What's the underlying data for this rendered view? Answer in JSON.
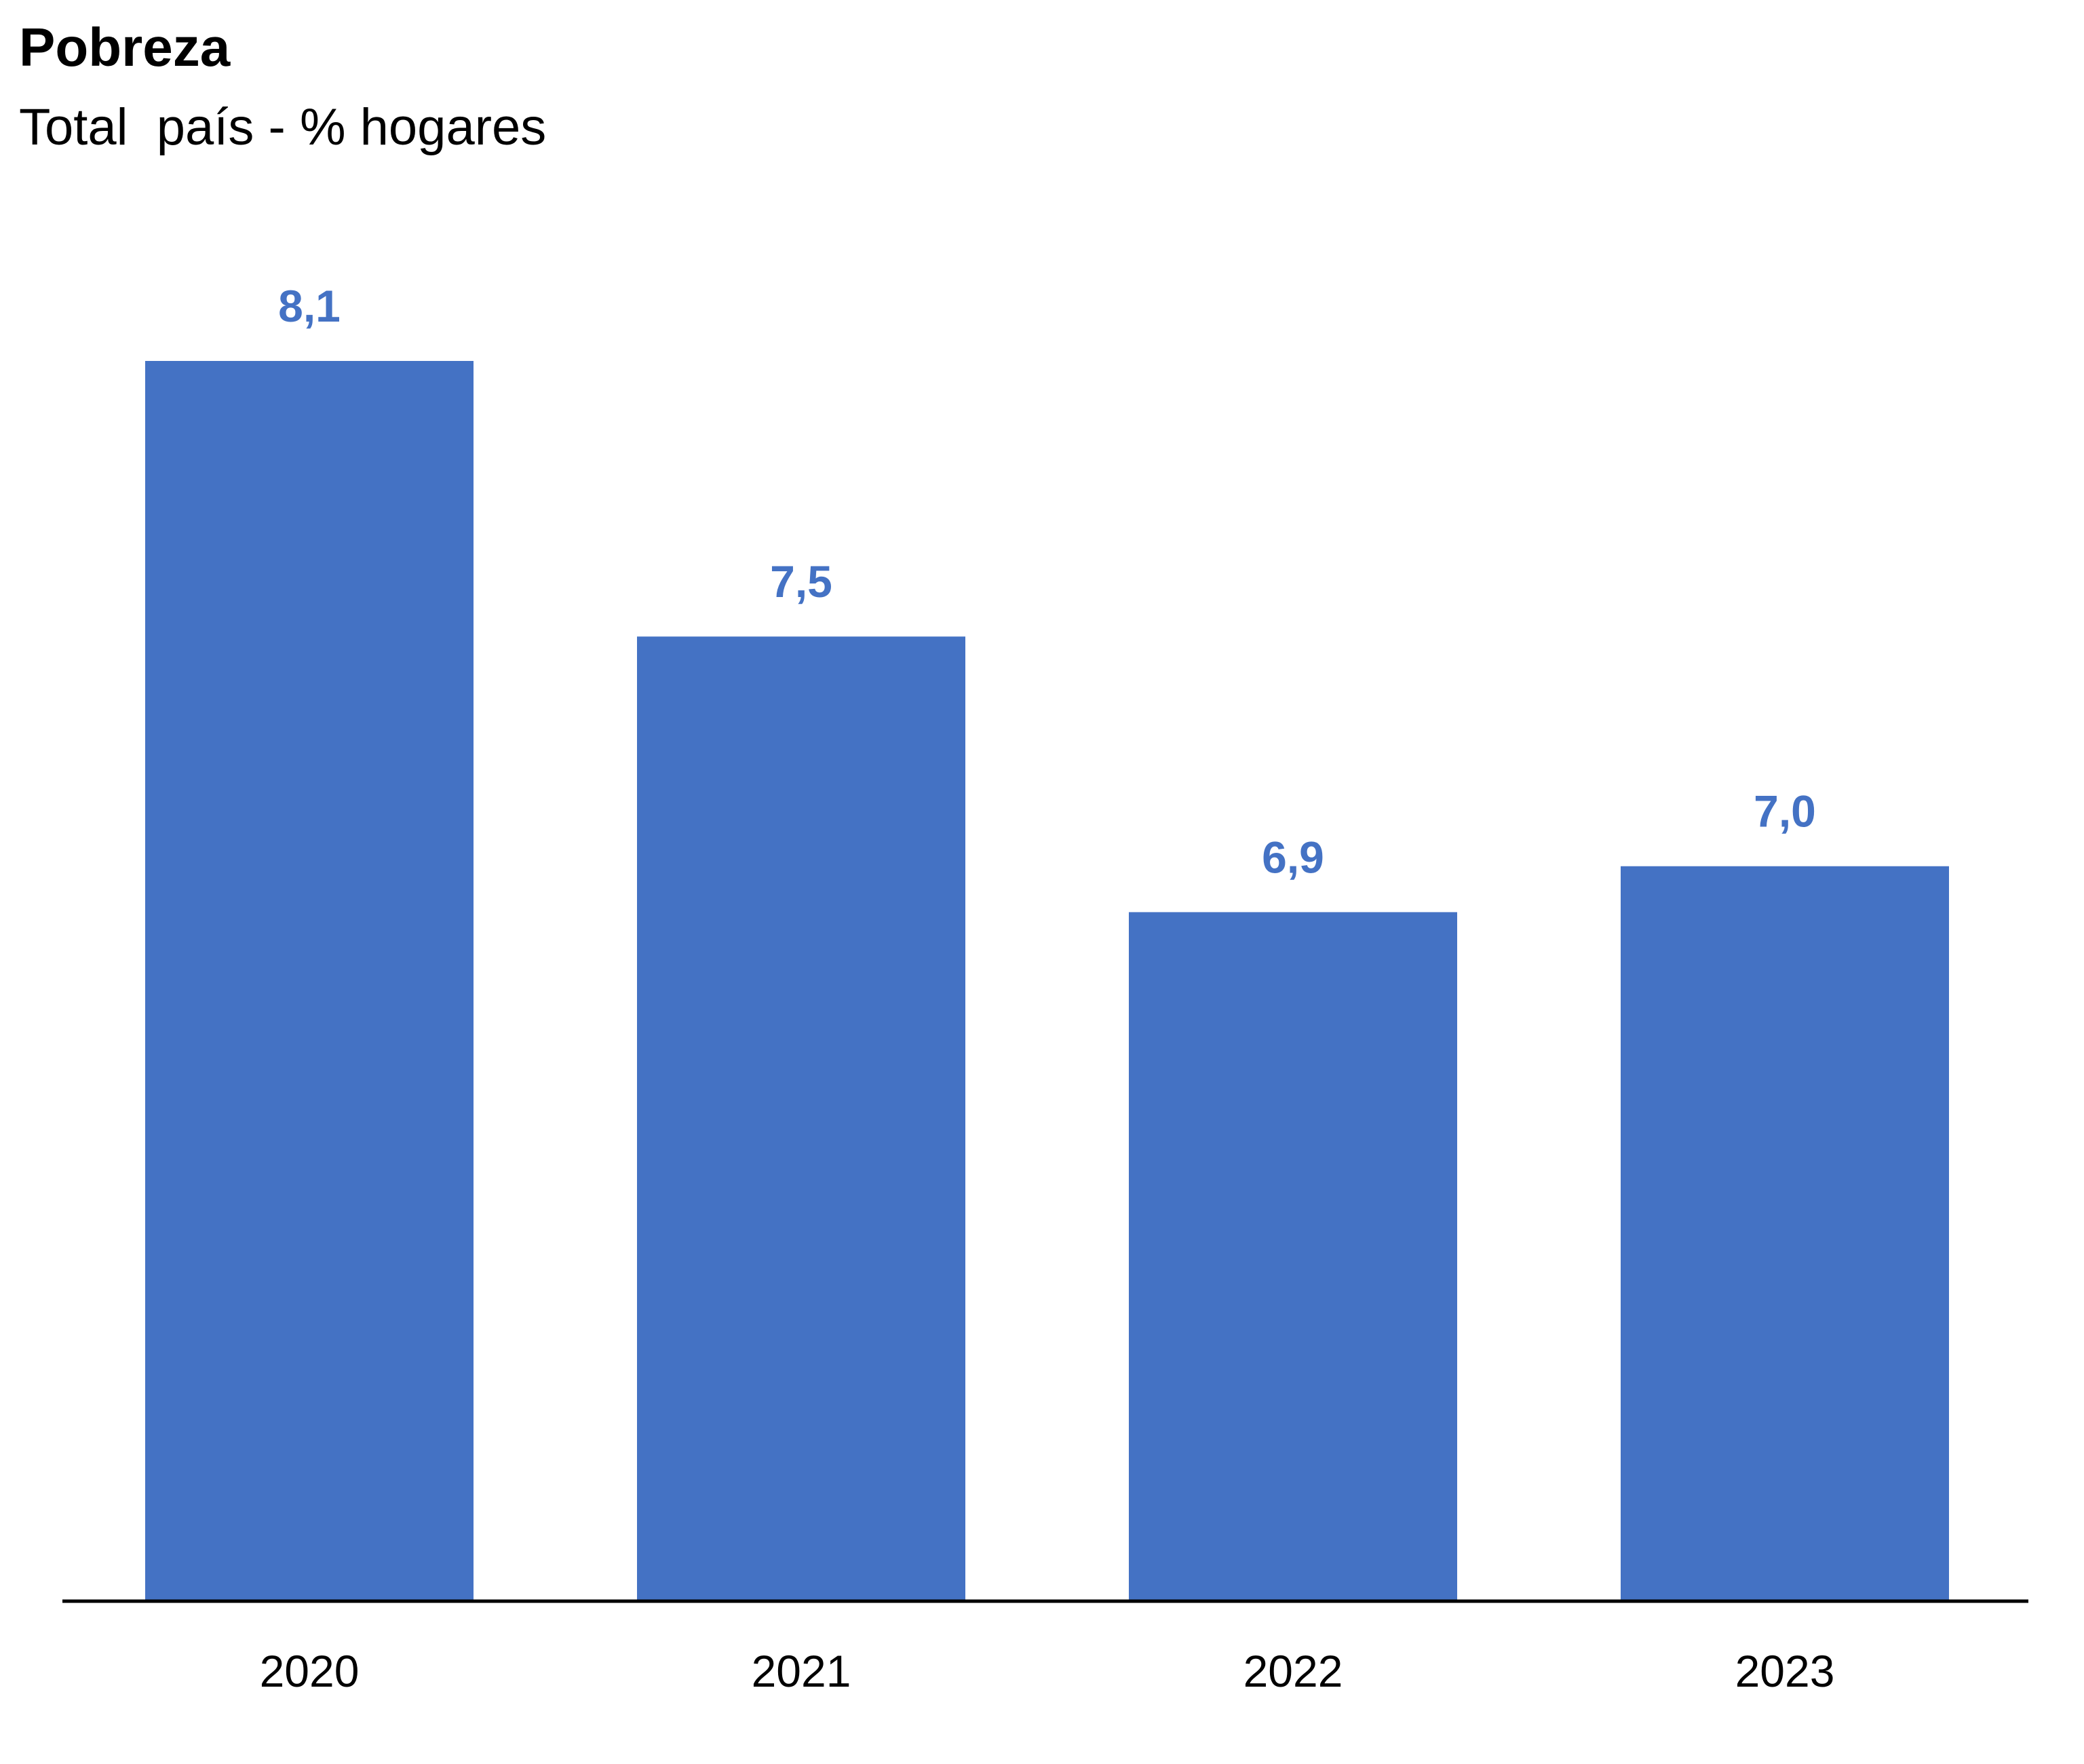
{
  "chart_data": {
    "type": "bar",
    "title": "Pobreza",
    "subtitle": "Total  país - % hogares",
    "categories": [
      "2020",
      "2021",
      "2022",
      "2023"
    ],
    "values": [
      8.1,
      7.5,
      6.9,
      7.0
    ],
    "value_labels": [
      "8,1",
      "7,5",
      "6,9",
      "7,0"
    ],
    "xlabel": "",
    "ylabel": "",
    "ylim": [
      5.4,
      8.1
    ],
    "grid": false,
    "legend": "none",
    "colors": {
      "bar": "#4472C4",
      "label": "#4472C4",
      "axis": "#000000"
    }
  }
}
